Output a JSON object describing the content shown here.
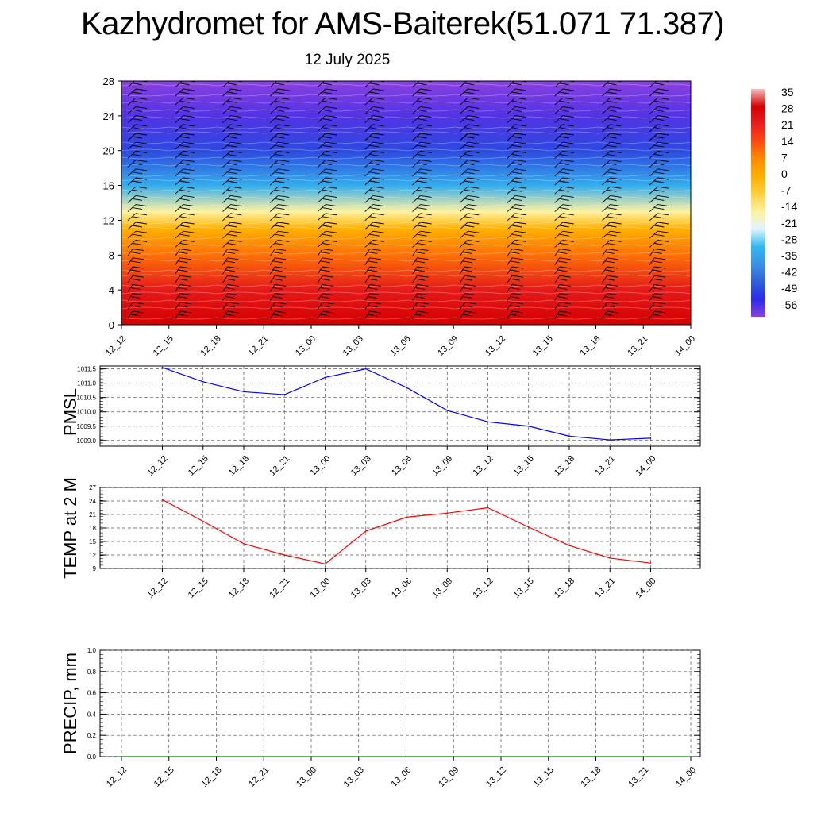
{
  "title": "Kazhydromet for AMS-Baiterek(51.071 71.387)",
  "subtitle": "12 July 2025",
  "chart_data": [
    {
      "type": "heatmap",
      "x_ticks": [
        "12_12",
        "12_15",
        "12_18",
        "12_21",
        "13_00",
        "13_03",
        "13_06",
        "13_09",
        "13_12",
        "13_15",
        "13_18",
        "13_21",
        "14_00"
      ],
      "y_ticks": [
        "0",
        "4",
        "8",
        "12",
        "16",
        "20",
        "24",
        "28"
      ],
      "ylim": [
        0,
        28
      ],
      "colorbar": {
        "labels": [
          "35",
          "28",
          "21",
          "14",
          "7",
          "0",
          "-7",
          "-14",
          "-21",
          "-28",
          "-35",
          "-42",
          "-49",
          "-56"
        ],
        "colors": [
          "#f2c0c0",
          "#d40000",
          "#e81e1e",
          "#ff4a10",
          "#ff8c00",
          "#ffb000",
          "#ffd040",
          "#fff2a0",
          "#dff4ff",
          "#30b8f0",
          "#3a92e6",
          "#3060d8",
          "#2a2ae8",
          "#8a40e0"
        ]
      },
      "temperature_profile": [
        {
          "height": 0,
          "value": 28
        },
        {
          "height": 4,
          "value": 22
        },
        {
          "height": 8,
          "value": 10
        },
        {
          "height": 11,
          "value": 0
        },
        {
          "height": 13,
          "value": -14
        },
        {
          "height": 16,
          "value": -30
        },
        {
          "height": 20,
          "value": -45
        },
        {
          "height": 24,
          "value": -52
        },
        {
          "height": 28,
          "value": -58
        }
      ],
      "wind_barbs": "black barbs at every time column and height level"
    },
    {
      "type": "line",
      "ylabel": "PMSL",
      "x": [
        "12_12",
        "12_15",
        "12_18",
        "12_21",
        "13_00",
        "13_03",
        "13_06",
        "13_09",
        "13_12",
        "13_15",
        "13_18",
        "13_21",
        "14_00"
      ],
      "y_ticks": [
        "1009.0",
        "1009.5",
        "1010.0",
        "1010.5",
        "1011.0",
        "1011.5"
      ],
      "ylim": [
        1008.8,
        1011.6
      ],
      "series": [
        {
          "values": [
            1011.55,
            1011.05,
            1010.7,
            1010.6,
            1011.2,
            1011.5,
            1010.85,
            1010.05,
            1009.65,
            1009.5,
            1009.15,
            1009.02,
            1009.08
          ],
          "color": "#0000ff"
        }
      ],
      "grid": true
    },
    {
      "type": "line",
      "ylabel": "TEMP at 2 M",
      "x": [
        "12_12",
        "12_15",
        "12_18",
        "12_21",
        "13_00",
        "13_03",
        "13_06",
        "13_09",
        "13_12",
        "13_15",
        "13_18",
        "13_21",
        "14_00"
      ],
      "y_ticks": [
        "9",
        "12",
        "15",
        "18",
        "21",
        "24",
        "27"
      ],
      "ylim": [
        9,
        27
      ],
      "series": [
        {
          "values": [
            24.3,
            19.5,
            14.5,
            12.0,
            10.0,
            17.3,
            20.4,
            21.3,
            22.5,
            18.2,
            14.1,
            11.3,
            10.2
          ],
          "color": "#ff0000"
        }
      ],
      "grid": true
    },
    {
      "type": "line",
      "ylabel": "PRECIP, mm",
      "x": [
        "12_12",
        "12_15",
        "12_18",
        "12_21",
        "13_00",
        "13_03",
        "13_06",
        "13_09",
        "13_12",
        "13_15",
        "13_18",
        "13_21",
        "14_00"
      ],
      "y_ticks": [
        "0.0",
        "0.2",
        "0.4",
        "0.6",
        "0.8",
        "1.0"
      ],
      "ylim": [
        0,
        1.0
      ],
      "series": [
        {
          "values": [
            0,
            0,
            0,
            0,
            0,
            0,
            0,
            0,
            0,
            0,
            0,
            0,
            0
          ],
          "color": "#007f00"
        }
      ],
      "grid": true
    }
  ]
}
